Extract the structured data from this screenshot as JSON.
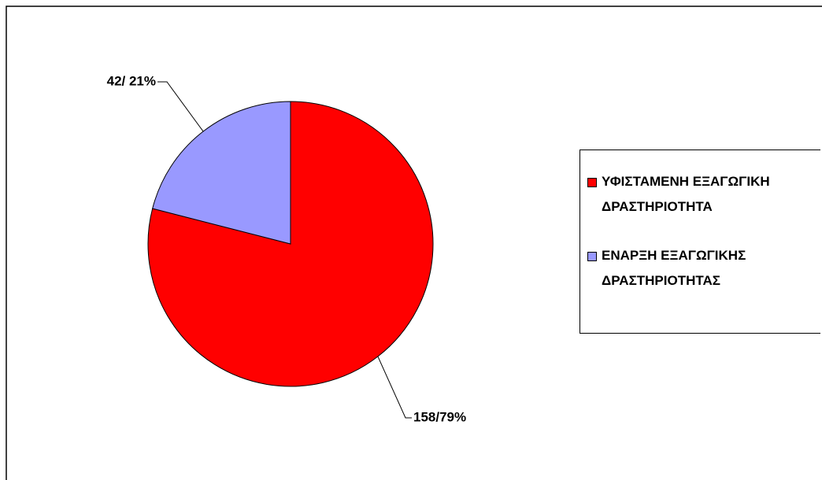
{
  "chart_data": {
    "type": "pie",
    "categories": [
      "ΥΦΙΣΤΑΜΕΝΗ ΕΞΑΓΩΓΙΚΗ ΔΡΑΣΤΗΡΙΟΤΗΤΑ",
      "ΕΝΑΡΞΗ ΕΞΑΓΩΓΙΚΗΣ ΔΡΑΣΤΗΡΙΟΤΗΤΑΣ"
    ],
    "values": [
      158,
      42
    ],
    "value_labels": [
      "158/79%",
      "42/ 21%"
    ],
    "colors": [
      "#ff0000",
      "#9999ff"
    ],
    "legend": "right"
  }
}
